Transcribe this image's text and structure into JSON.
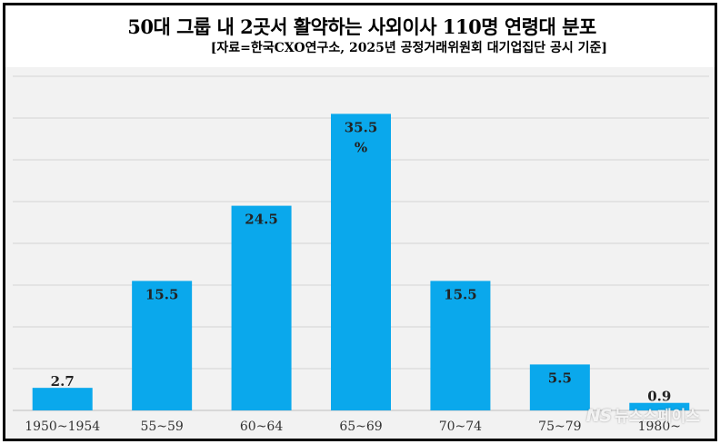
{
  "chart_data": {
    "type": "bar",
    "title": "50대 그룹 내 2곳서 활약하는 사외이사 110명 연령대 분포",
    "subtitle": "[자료=한국CXO연구소, 2025년 공정거래위원회 대기업집단 공시 기준]",
    "categories": [
      "1950~1954",
      "55~59",
      "60~64",
      "65~69",
      "70~74",
      "75~79",
      "1980~"
    ],
    "values": [
      2.7,
      15.5,
      24.5,
      35.5,
      15.5,
      5.5,
      0.9
    ],
    "value_labels": [
      "2.7",
      "15.5",
      "24.5",
      "35.5",
      "15.5",
      "5.5",
      "0.9"
    ],
    "peak_unit": "%",
    "ylim": [
      0,
      40
    ],
    "grid_step": 5,
    "grid": true,
    "bar_color": "#0aa8ec"
  },
  "watermark": {
    "logo": "NS",
    "text": "뉴스스페이스"
  }
}
